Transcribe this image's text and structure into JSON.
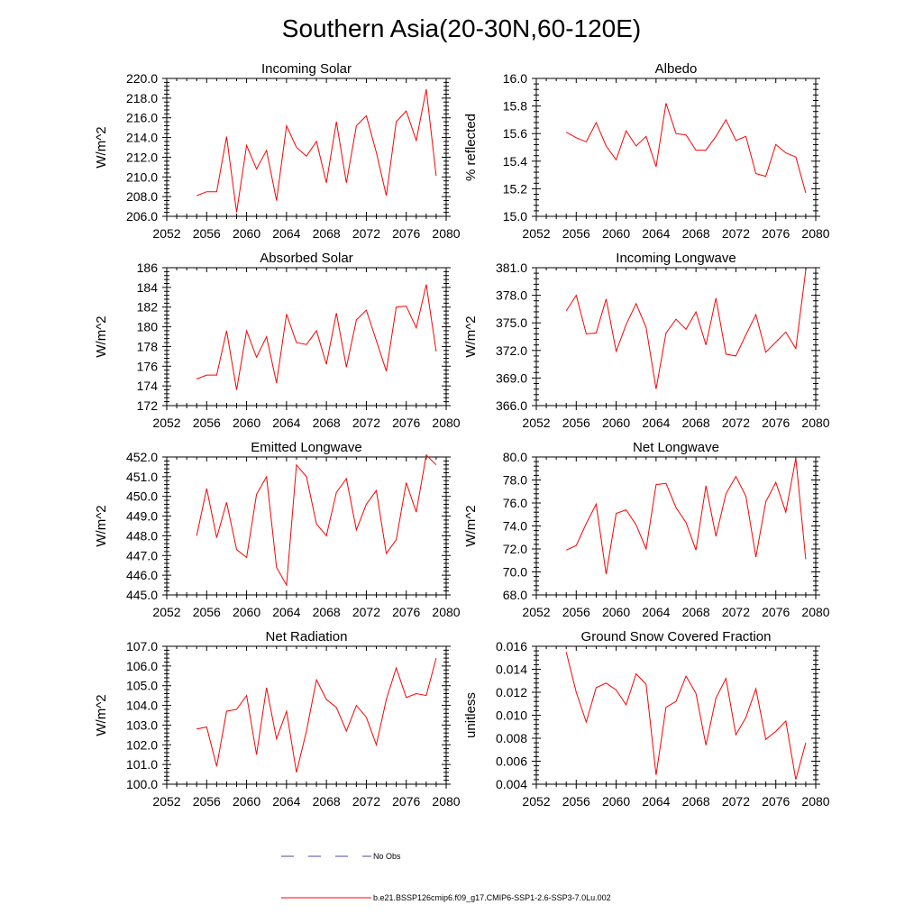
{
  "page_title": "Southern Asia(20-30N,60-120E)",
  "legend": [
    {
      "label": "No Obs",
      "color": "#4a4aa0",
      "dashed": true
    },
    {
      "label": "b.e21.BSSP126cmip6.f09_g17.CMIP6-SSP1-2.6-SSP3-7.0Lu.002",
      "color": "#ff0000",
      "dashed": false
    }
  ],
  "chart_data": [
    {
      "type": "line",
      "title": "Incoming Solar",
      "ylabel": "W/m^2",
      "xlim": [
        2052,
        2080
      ],
      "ylim": [
        206.0,
        220.0
      ],
      "xticks": [
        "2052",
        "2056",
        "2060",
        "2064",
        "2068",
        "2072",
        "2076",
        "2080"
      ],
      "yticks": [
        "206.0",
        "208.0",
        "210.0",
        "212.0",
        "214.0",
        "216.0",
        "218.0",
        "220.0"
      ],
      "x": [
        2055,
        2056,
        2057,
        2058,
        2059,
        2060,
        2061,
        2062,
        2063,
        2064,
        2065,
        2066,
        2067,
        2068,
        2069,
        2070,
        2071,
        2072,
        2073,
        2074,
        2075,
        2076,
        2077,
        2078,
        2079
      ],
      "series": [
        {
          "color": "#ff0000",
          "values": [
            208.1,
            208.5,
            208.5,
            214.1,
            206.4,
            213.2,
            210.8,
            212.7,
            207.6,
            215.2,
            213.0,
            212.1,
            213.6,
            209.4,
            215.6,
            209.4,
            215.2,
            216.2,
            212.5,
            208.1,
            215.6,
            216.7,
            213.7,
            218.9,
            210.1
          ]
        }
      ]
    },
    {
      "type": "line",
      "title": "Albedo",
      "ylabel": "% reflected",
      "xlim": [
        2052,
        2080
      ],
      "ylim": [
        15.0,
        16.0
      ],
      "xticks": [
        "2052",
        "2056",
        "2060",
        "2064",
        "2068",
        "2072",
        "2076",
        "2080"
      ],
      "yticks": [
        "15.0",
        "15.2",
        "15.4",
        "15.6",
        "15.8",
        "16.0"
      ],
      "x": [
        2055,
        2056,
        2057,
        2058,
        2059,
        2060,
        2061,
        2062,
        2063,
        2064,
        2065,
        2066,
        2067,
        2068,
        2069,
        2070,
        2071,
        2072,
        2073,
        2074,
        2075,
        2076,
        2077,
        2078,
        2079
      ],
      "series": [
        {
          "color": "#ff0000",
          "values": [
            15.61,
            15.57,
            15.54,
            15.68,
            15.51,
            15.41,
            15.62,
            15.51,
            15.58,
            15.36,
            15.82,
            15.6,
            15.59,
            15.48,
            15.48,
            15.58,
            15.7,
            15.55,
            15.58,
            15.31,
            15.29,
            15.52,
            15.46,
            15.43,
            15.17
          ]
        }
      ]
    },
    {
      "type": "line",
      "title": "Absorbed Solar",
      "ylabel": "W/m^2",
      "xlim": [
        2052,
        2080
      ],
      "ylim": [
        172,
        186
      ],
      "xticks": [
        "2052",
        "2056",
        "2060",
        "2064",
        "2068",
        "2072",
        "2076",
        "2080"
      ],
      "yticks": [
        "172",
        "174",
        "176",
        "178",
        "180",
        "182",
        "184",
        "186"
      ],
      "x": [
        2055,
        2056,
        2057,
        2058,
        2059,
        2060,
        2061,
        2062,
        2063,
        2064,
        2065,
        2066,
        2067,
        2068,
        2069,
        2070,
        2071,
        2072,
        2073,
        2074,
        2075,
        2076,
        2077,
        2078,
        2079
      ],
      "series": [
        {
          "color": "#ff0000",
          "values": [
            174.7,
            175.1,
            175.1,
            179.6,
            173.6,
            179.6,
            176.9,
            179.0,
            174.3,
            181.3,
            178.4,
            178.2,
            179.6,
            176.2,
            181.4,
            175.9,
            180.7,
            181.7,
            178.6,
            175.5,
            182.0,
            182.1,
            179.9,
            184.3,
            177.5
          ]
        }
      ]
    },
    {
      "type": "line",
      "title": "Incoming Longwave",
      "ylabel": "W/m^2",
      "xlim": [
        2052,
        2080
      ],
      "ylim": [
        366.0,
        381.0
      ],
      "xticks": [
        "2052",
        "2056",
        "2060",
        "2064",
        "2068",
        "2072",
        "2076",
        "2080"
      ],
      "yticks": [
        "366.0",
        "369.0",
        "372.0",
        "375.0",
        "378.0",
        "381.0"
      ],
      "x": [
        2055,
        2056,
        2057,
        2058,
        2059,
        2060,
        2061,
        2062,
        2063,
        2064,
        2065,
        2066,
        2067,
        2068,
        2069,
        2070,
        2071,
        2072,
        2073,
        2074,
        2075,
        2076,
        2077,
        2078,
        2079
      ],
      "series": [
        {
          "color": "#ff0000",
          "values": [
            376.3,
            378.0,
            373.8,
            373.9,
            377.6,
            371.9,
            374.8,
            377.1,
            374.5,
            367.8,
            373.9,
            375.4,
            374.3,
            376.2,
            372.6,
            377.7,
            371.6,
            371.4,
            373.7,
            375.9,
            371.8,
            372.9,
            374.0,
            372.2,
            380.7
          ]
        }
      ]
    },
    {
      "type": "line",
      "title": "Emitted Longwave",
      "ylabel": "W/m^2",
      "xlim": [
        2052,
        2080
      ],
      "ylim": [
        445.0,
        452.0
      ],
      "xticks": [
        "2052",
        "2056",
        "2060",
        "2064",
        "2068",
        "2072",
        "2076",
        "2080"
      ],
      "yticks": [
        "445.0",
        "446.0",
        "447.0",
        "448.0",
        "449.0",
        "450.0",
        "451.0",
        "452.0"
      ],
      "x": [
        2055,
        2056,
        2057,
        2058,
        2059,
        2060,
        2061,
        2062,
        2063,
        2064,
        2065,
        2066,
        2067,
        2068,
        2069,
        2070,
        2071,
        2072,
        2073,
        2074,
        2075,
        2076,
        2077,
        2078,
        2079
      ],
      "series": [
        {
          "color": "#ff0000",
          "values": [
            448.0,
            450.4,
            447.9,
            449.7,
            447.3,
            446.9,
            450.1,
            451.0,
            446.4,
            445.5,
            451.6,
            451.0,
            448.6,
            448.0,
            450.2,
            450.9,
            448.3,
            449.6,
            450.3,
            447.1,
            447.8,
            450.7,
            449.2,
            452.1,
            451.6
          ]
        }
      ]
    },
    {
      "type": "line",
      "title": "Net Longwave",
      "ylabel": "W/m^2",
      "xlim": [
        2052,
        2080
      ],
      "ylim": [
        68.0,
        80.0
      ],
      "xticks": [
        "2052",
        "2056",
        "2060",
        "2064",
        "2068",
        "2072",
        "2076",
        "2080"
      ],
      "yticks": [
        "68.0",
        "70.0",
        "72.0",
        "74.0",
        "76.0",
        "78.0",
        "80.0"
      ],
      "x": [
        2055,
        2056,
        2057,
        2058,
        2059,
        2060,
        2061,
        2062,
        2063,
        2064,
        2065,
        2066,
        2067,
        2068,
        2069,
        2070,
        2071,
        2072,
        2073,
        2074,
        2075,
        2076,
        2077,
        2078,
        2079
      ],
      "series": [
        {
          "color": "#ff0000",
          "values": [
            71.9,
            72.3,
            74.2,
            75.9,
            69.8,
            75.1,
            75.4,
            74.1,
            72.0,
            77.6,
            77.7,
            75.6,
            74.3,
            71.9,
            77.5,
            73.1,
            76.8,
            78.3,
            76.6,
            71.3,
            76.1,
            77.8,
            75.2,
            79.9,
            71.1
          ]
        }
      ]
    },
    {
      "type": "line",
      "title": "Net Radiation",
      "ylabel": "W/m^2",
      "xlim": [
        2052,
        2080
      ],
      "ylim": [
        100.0,
        107.0
      ],
      "xticks": [
        "2052",
        "2056",
        "2060",
        "2064",
        "2068",
        "2072",
        "2076",
        "2080"
      ],
      "yticks": [
        "100.0",
        "101.0",
        "102.0",
        "103.0",
        "104.0",
        "105.0",
        "106.0",
        "107.0"
      ],
      "x": [
        2055,
        2056,
        2057,
        2058,
        2059,
        2060,
        2061,
        2062,
        2063,
        2064,
        2065,
        2066,
        2067,
        2068,
        2069,
        2070,
        2071,
        2072,
        2073,
        2074,
        2075,
        2076,
        2077,
        2078,
        2079
      ],
      "series": [
        {
          "color": "#ff0000",
          "values": [
            102.8,
            102.9,
            100.9,
            103.7,
            103.8,
            104.5,
            101.5,
            104.9,
            102.3,
            103.7,
            100.6,
            102.7,
            105.3,
            104.3,
            103.9,
            102.7,
            104.0,
            103.4,
            102.0,
            104.3,
            105.9,
            104.4,
            104.6,
            104.5,
            106.4
          ]
        }
      ]
    },
    {
      "type": "line",
      "title": "Ground Snow Covered Fraction",
      "ylabel": "unitless",
      "xlim": [
        2052,
        2080
      ],
      "ylim": [
        0.004,
        0.016
      ],
      "xticks": [
        "2052",
        "2056",
        "2060",
        "2064",
        "2068",
        "2072",
        "2076",
        "2080"
      ],
      "yticks": [
        "0.004",
        "0.006",
        "0.008",
        "0.010",
        "0.012",
        "0.014",
        "0.016"
      ],
      "x": [
        2055,
        2056,
        2057,
        2058,
        2059,
        2060,
        2061,
        2062,
        2063,
        2064,
        2065,
        2066,
        2067,
        2068,
        2069,
        2070,
        2071,
        2072,
        2073,
        2074,
        2075,
        2076,
        2077,
        2078,
        2079
      ],
      "series": [
        {
          "color": "#ff0000",
          "values": [
            0.0155,
            0.012,
            0.0094,
            0.0124,
            0.0128,
            0.0122,
            0.0109,
            0.0136,
            0.0127,
            0.0048,
            0.0107,
            0.0112,
            0.0134,
            0.0119,
            0.0074,
            0.0115,
            0.0132,
            0.0083,
            0.0098,
            0.0123,
            0.0079,
            0.0086,
            0.0095,
            0.0044,
            0.0076
          ]
        }
      ]
    }
  ]
}
